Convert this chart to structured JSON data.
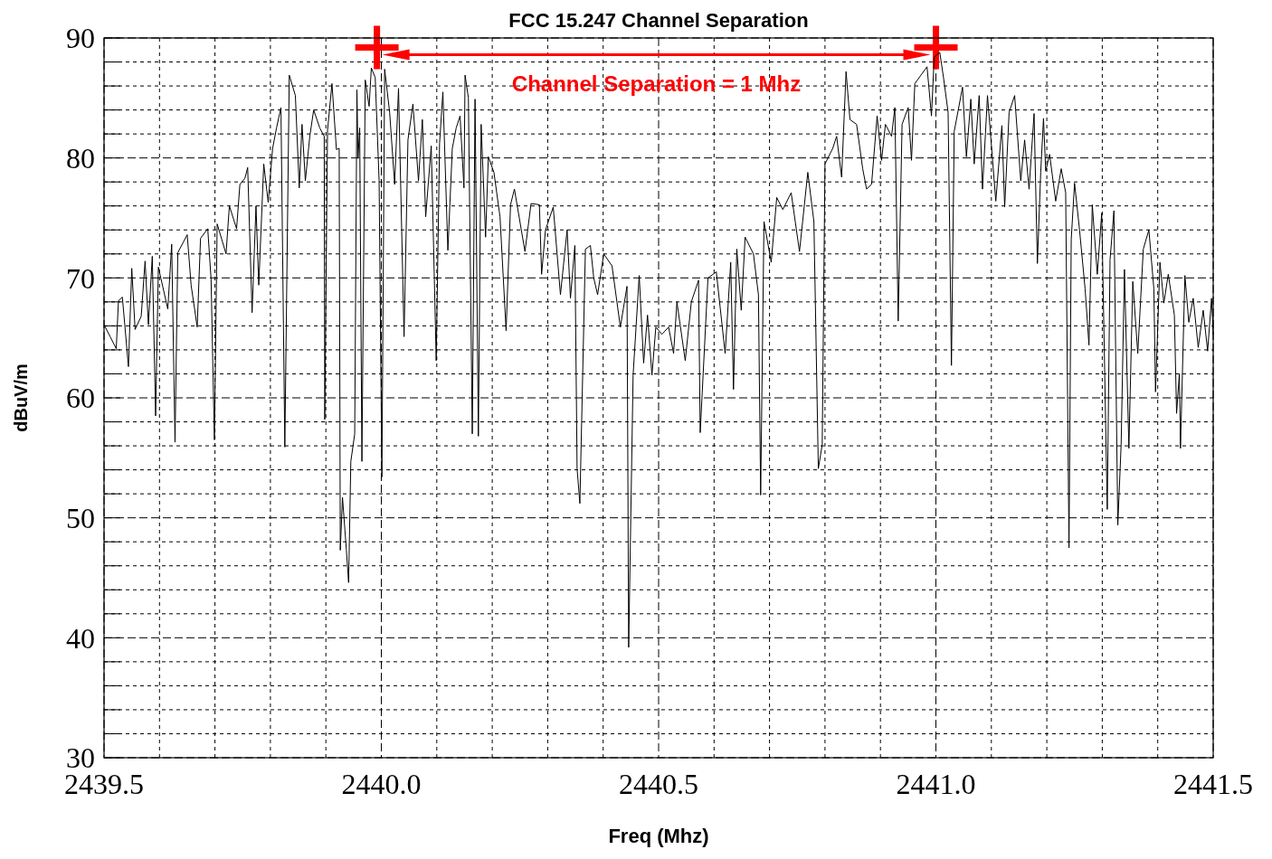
{
  "chart_data": {
    "type": "line",
    "title": "FCC 15.247 Channel Separation",
    "xlabel": "Freq (Mhz)",
    "ylabel": "dBuV/m",
    "xlim": [
      2439.5,
      2441.5
    ],
    "ylim": [
      30,
      90
    ],
    "xticks": [
      {
        "value": 2439.5,
        "label": "2439.5"
      },
      {
        "value": 2439.6,
        "label": null
      },
      {
        "value": 2439.7,
        "label": null
      },
      {
        "value": 2439.8,
        "label": null
      },
      {
        "value": 2439.9,
        "label": null
      },
      {
        "value": 2440.0,
        "label": "2440.0"
      },
      {
        "value": 2440.1,
        "label": null
      },
      {
        "value": 2440.2,
        "label": null
      },
      {
        "value": 2440.3,
        "label": null
      },
      {
        "value": 2440.4,
        "label": null
      },
      {
        "value": 2440.5,
        "label": "2440.5"
      },
      {
        "value": 2440.6,
        "label": null
      },
      {
        "value": 2440.7,
        "label": null
      },
      {
        "value": 2440.8,
        "label": null
      },
      {
        "value": 2440.9,
        "label": null
      },
      {
        "value": 2441.0,
        "label": "2441.0"
      },
      {
        "value": 2441.1,
        "label": null
      },
      {
        "value": 2441.2,
        "label": null
      },
      {
        "value": 2441.3,
        "label": null
      },
      {
        "value": 2441.4,
        "label": null
      },
      {
        "value": 2441.5,
        "label": "2441.5"
      }
    ],
    "yticks": [
      30,
      {
        "value": 32,
        "label": null
      },
      {
        "value": 34,
        "label": null
      },
      {
        "value": 36,
        "label": null
      },
      {
        "value": 38,
        "label": null
      },
      40,
      {
        "value": 42,
        "label": null
      },
      {
        "value": 44,
        "label": null
      },
      {
        "value": 46,
        "label": null
      },
      {
        "value": 48,
        "label": null
      },
      50,
      {
        "value": 52,
        "label": null
      },
      {
        "value": 54,
        "label": null
      },
      {
        "value": 56,
        "label": null
      },
      {
        "value": 58,
        "label": null
      },
      60,
      {
        "value": 62,
        "label": null
      },
      {
        "value": 64,
        "label": null
      },
      {
        "value": 66,
        "label": null
      },
      {
        "value": 68,
        "label": null
      },
      70,
      {
        "value": 72,
        "label": null
      },
      {
        "value": 74,
        "label": null
      },
      {
        "value": 76,
        "label": null
      },
      {
        "value": 78,
        "label": null
      },
      80,
      {
        "value": 82,
        "label": null
      },
      {
        "value": 84,
        "label": null
      },
      {
        "value": 86,
        "label": null
      },
      {
        "value": 88,
        "label": null
      },
      90
    ],
    "grid": true,
    "annotations": [
      "Channel Separation = 1 Mhz"
    ],
    "series": [
      {
        "color": "#000000",
        "x": [
          2439.5,
          2439.511,
          2439.522,
          2439.526,
          2439.533,
          2439.544,
          2439.55,
          2439.556,
          2439.567,
          2439.574,
          2439.58,
          2439.587,
          2439.593,
          2439.598,
          2439.615,
          2439.622,
          2439.628,
          2439.633,
          2439.65,
          2439.657,
          2439.668,
          2439.674,
          2439.687,
          2439.693,
          2439.699,
          2439.704,
          2439.72,
          2439.726,
          2439.739,
          2439.745,
          2439.754,
          2439.759,
          2439.767,
          2439.774,
          2439.779,
          2439.788,
          2439.796,
          2439.804,
          2439.811,
          2439.819,
          2439.826,
          2439.834,
          2439.845,
          2439.852,
          2439.857,
          2439.863,
          2439.871,
          2439.878,
          2439.889,
          2439.897,
          2439.898,
          2439.903,
          2439.911,
          2439.919,
          2439.924,
          2439.926,
          2439.93,
          2439.937,
          2439.941,
          2439.945,
          2439.952,
          2439.956,
          2439.958,
          2439.961,
          2439.965,
          2439.971,
          2439.978,
          2439.982,
          2439.989,
          2439.996,
          2440.001,
          2440.006,
          2440.015,
          2440.024,
          2440.031,
          2440.041,
          2440.048,
          2440.057,
          2440.067,
          2440.074,
          2440.08,
          2440.09,
          2440.099,
          2440.105,
          2440.111,
          2440.12,
          2440.128,
          2440.135,
          2440.142,
          2440.149,
          2440.151,
          2440.157,
          2440.164,
          2440.169,
          2440.175,
          2440.18,
          2440.188,
          2440.193,
          2440.203,
          2440.214,
          2440.225,
          2440.233,
          2440.24,
          2440.259,
          2440.27,
          2440.285,
          2440.289,
          2440.296,
          2440.31,
          2440.323,
          2440.335,
          2440.341,
          2440.349,
          2440.353,
          2440.358,
          2440.368,
          2440.377,
          2440.383,
          2440.39,
          2440.401,
          2440.416,
          2440.431,
          2440.443,
          2440.446,
          2440.454,
          2440.465,
          2440.473,
          2440.48,
          2440.488,
          2440.495,
          2440.506,
          2440.518,
          2440.527,
          2440.533,
          2440.548,
          2440.559,
          2440.572,
          2440.575,
          2440.589,
          2440.604,
          2440.62,
          2440.63,
          2440.635,
          2440.641,
          2440.649,
          2440.656,
          2440.671,
          2440.68,
          2440.684,
          2440.69,
          2440.703,
          2440.713,
          2440.724,
          2440.739,
          2440.754,
          2440.769,
          2440.78,
          2440.788,
          2440.795,
          2440.8,
          2440.814,
          2440.821,
          2440.83,
          2440.838,
          2440.845,
          2440.857,
          2440.868,
          2440.875,
          2440.884,
          2440.894,
          2440.902,
          2440.909,
          2440.92,
          2440.926,
          2440.932,
          2440.939,
          2440.95,
          2440.956,
          2440.962,
          2440.973,
          2440.984,
          2440.992,
          2440.997,
          2441.007,
          2441.014,
          2441.022,
          2441.028,
          2441.033,
          2441.048,
          2441.055,
          2441.063,
          2441.069,
          2441.078,
          2441.084,
          2441.093,
          2441.108,
          2441.119,
          2441.124,
          2441.132,
          2441.142,
          2441.153,
          2441.16,
          2441.168,
          2441.177,
          2441.183,
          2441.189,
          2441.194,
          2441.198,
          2441.205,
          2441.216,
          2441.226,
          2441.234,
          2441.24,
          2441.244,
          2441.25,
          2441.259,
          2441.269,
          2441.276,
          2441.282,
          2441.291,
          2441.299,
          2441.309,
          2441.314,
          2441.321,
          2441.328,
          2441.334,
          2441.34,
          2441.348,
          2441.355,
          2441.364,
          2441.374,
          2441.384,
          2441.393,
          2441.396,
          2441.404,
          2441.411,
          2441.419,
          2441.43,
          2441.434,
          2441.439,
          2441.441,
          2441.449,
          2441.456,
          2441.464,
          2441.473,
          2441.482,
          2441.49,
          2441.497,
          2441.5
        ],
        "values": [
          66.1,
          65.1,
          64.1,
          68.1,
          68.4,
          62.6,
          70.8,
          65.7,
          66.8,
          71.4,
          66.1,
          71.8,
          58.5,
          70.9,
          67.4,
          72.8,
          56.3,
          72.1,
          73.6,
          69.4,
          65.9,
          73.3,
          74.1,
          69.9,
          56.5,
          74.5,
          72.0,
          76.0,
          74.1,
          77.8,
          78.3,
          79.2,
          67.1,
          76.0,
          69.4,
          79.5,
          76.3,
          80.8,
          82.5,
          84.2,
          55.9,
          86.9,
          85.2,
          77.5,
          82.8,
          78.1,
          81.8,
          84.0,
          82.5,
          81.8,
          58.2,
          82.3,
          86.2,
          80.7,
          80.8,
          47.3,
          51.7,
          47.3,
          44.6,
          54.7,
          57.0,
          85.7,
          80.0,
          82.5,
          54.7,
          86.5,
          84.3,
          87.5,
          86.7,
          78.1,
          53.4,
          87.4,
          83.8,
          77.8,
          85.8,
          65.1,
          81.5,
          84.5,
          78.1,
          83.2,
          75.1,
          81.0,
          63.1,
          81.2,
          85.5,
          72.3,
          80.8,
          82.5,
          83.5,
          77.5,
          86.9,
          85.0,
          57.0,
          84.9,
          56.8,
          82.8,
          73.4,
          80.1,
          78.8,
          75.1,
          65.6,
          76.1,
          77.4,
          72.2,
          76.2,
          76.1,
          70.3,
          74.0,
          75.9,
          68.6,
          74.0,
          68.3,
          72.7,
          54.1,
          51.2,
          72.4,
          72.7,
          70.0,
          68.6,
          72.0,
          71.0,
          65.9,
          69.3,
          39.2,
          61.9,
          70.2,
          62.9,
          66.9,
          61.9,
          65.9,
          65.3,
          65.9,
          63.7,
          68.0,
          63.1,
          68.0,
          69.8,
          57.1,
          70.0,
          70.5,
          63.7,
          71.3,
          60.7,
          72.4,
          67.3,
          73.4,
          72.0,
          68.6,
          51.9,
          74.7,
          71.3,
          76.7,
          75.7,
          77.1,
          72.2,
          78.8,
          74.7,
          54.1,
          56.1,
          79.5,
          80.8,
          81.8,
          78.4,
          87.2,
          83.2,
          82.8,
          79.1,
          77.4,
          77.8,
          83.5,
          79.8,
          82.8,
          81.8,
          84.2,
          66.4,
          82.8,
          84.2,
          79.8,
          86.2,
          86.9,
          87.6,
          83.5,
          88.4,
          88.8,
          86.6,
          83.8,
          62.7,
          82.2,
          85.9,
          80.1,
          84.9,
          79.5,
          85.2,
          77.4,
          85.2,
          76.4,
          82.7,
          75.9,
          83.8,
          85.2,
          78.1,
          81.5,
          77.4,
          83.7,
          71.2,
          78.8,
          83.3,
          78.9,
          80.3,
          76.4,
          79.1,
          77.1,
          47.5,
          73.2,
          77.9,
          74.0,
          69.1,
          64.4,
          76.1,
          70.3,
          75.4,
          50.7,
          71.5,
          75.6,
          49.4,
          56.1,
          70.7,
          55.8,
          69.7,
          63.7,
          72.4,
          74.0,
          69.1,
          60.5,
          71.3,
          67.9,
          70.3,
          66.9,
          58.7,
          62.0,
          55.8,
          70.2,
          66.3,
          68.3,
          64.2,
          67.3,
          63.9,
          68.3,
          65.3
        ]
      },
      {
        "type": "scatter",
        "color": "#ff0000",
        "marker": "cross",
        "x": [
          2439.992,
          2441.0
        ],
        "values": [
          89.2,
          89.2
        ]
      }
    ]
  }
}
